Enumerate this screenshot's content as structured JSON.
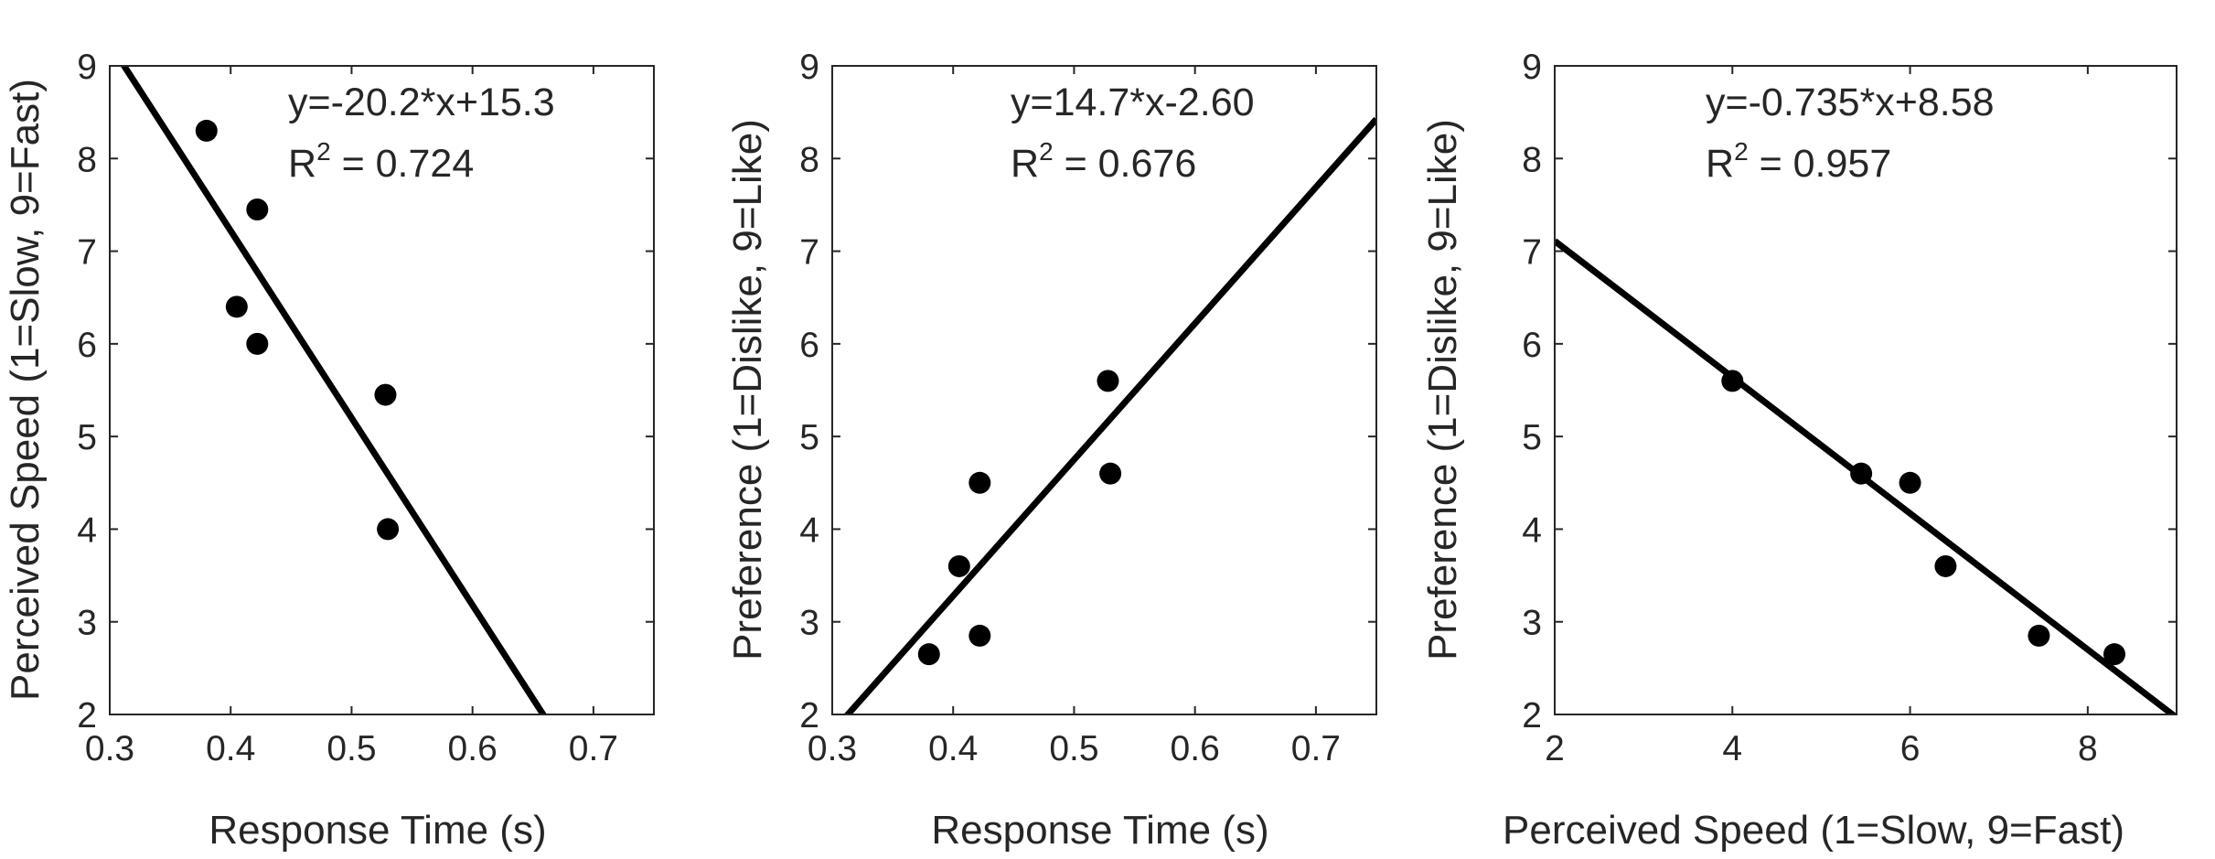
{
  "chart_data": [
    {
      "type": "scatter",
      "xlabel": "Response Time (s)",
      "ylabel": "Perceived Speed (1=Slow, 9=Fast)",
      "xlim": [
        0.3,
        0.75
      ],
      "ylim": [
        2,
        9
      ],
      "xticks": [
        "0.3",
        "0.4",
        "0.5",
        "0.6",
        "0.7"
      ],
      "yticks": [
        "2",
        "3",
        "4",
        "5",
        "6",
        "7",
        "8",
        "9"
      ],
      "grid": false,
      "points": [
        {
          "x": 0.38,
          "y": 8.3
        },
        {
          "x": 0.405,
          "y": 6.4
        },
        {
          "x": 0.422,
          "y": 7.45
        },
        {
          "x": 0.422,
          "y": 6.0
        },
        {
          "x": 0.528,
          "y": 5.45
        },
        {
          "x": 0.53,
          "y": 4.0
        }
      ],
      "fit": {
        "slope": -20.2,
        "intercept": 15.3
      },
      "equation": "y=-20.2*x+15.3",
      "r2_prefix": "R",
      "r2_exp": "2",
      "r2_value": " = 0.724"
    },
    {
      "type": "scatter",
      "xlabel": "Response Time (s)",
      "ylabel": "Preference (1=Dislike, 9=Like)",
      "xlim": [
        0.3,
        0.75
      ],
      "ylim": [
        2,
        9
      ],
      "xticks": [
        "0.3",
        "0.4",
        "0.5",
        "0.6",
        "0.7"
      ],
      "yticks": [
        "2",
        "3",
        "4",
        "5",
        "6",
        "7",
        "8",
        "9"
      ],
      "grid": false,
      "points": [
        {
          "x": 0.38,
          "y": 2.65
        },
        {
          "x": 0.405,
          "y": 3.6
        },
        {
          "x": 0.422,
          "y": 4.5
        },
        {
          "x": 0.422,
          "y": 2.85
        },
        {
          "x": 0.528,
          "y": 5.6
        },
        {
          "x": 0.53,
          "y": 4.6
        }
      ],
      "fit": {
        "slope": 14.7,
        "intercept": -2.6
      },
      "equation": "y=14.7*x-2.60",
      "r2_prefix": "R",
      "r2_exp": "2",
      "r2_value": " = 0.676"
    },
    {
      "type": "scatter",
      "xlabel": "Perceived Speed (1=Slow, 9=Fast)",
      "ylabel": "Preference (1=Dislike, 9=Like)",
      "xlim": [
        2,
        9
      ],
      "ylim": [
        2,
        9
      ],
      "xticks": [
        "2",
        "4",
        "6",
        "8"
      ],
      "yticks": [
        "2",
        "3",
        "4",
        "5",
        "6",
        "7",
        "8",
        "9"
      ],
      "grid": false,
      "points": [
        {
          "x": 4.0,
          "y": 5.6
        },
        {
          "x": 5.45,
          "y": 4.6
        },
        {
          "x": 6.0,
          "y": 4.5
        },
        {
          "x": 6.4,
          "y": 3.6
        },
        {
          "x": 7.45,
          "y": 2.85
        },
        {
          "x": 8.3,
          "y": 2.65
        }
      ],
      "fit": {
        "slope": -0.735,
        "intercept": 8.58
      },
      "equation": "y=-0.735*x+8.58",
      "r2_prefix": "R",
      "r2_exp": "2",
      "r2_value": " = 0.957"
    }
  ]
}
